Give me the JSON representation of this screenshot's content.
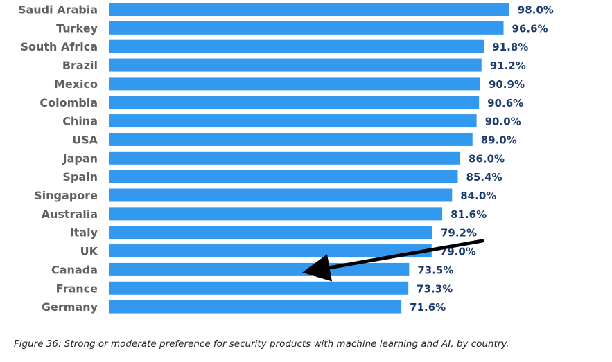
{
  "chart_data": {
    "type": "bar",
    "orientation": "horizontal",
    "categories": [
      "Saudi Arabia",
      "Turkey",
      "South Africa",
      "Brazil",
      "Mexico",
      "Colombia",
      "China",
      "USA",
      "Japan",
      "Spain",
      "Singapore",
      "Australia",
      "Italy",
      "UK",
      "Canada",
      "France",
      "Germany"
    ],
    "values": [
      98.0,
      96.6,
      91.8,
      91.2,
      90.9,
      90.6,
      90.0,
      89.0,
      86.0,
      85.4,
      84.0,
      81.6,
      79.2,
      79.0,
      73.5,
      73.3,
      71.6
    ],
    "value_labels": [
      "98.0%",
      "96.6%",
      "91.8%",
      "91.2%",
      "90.9%",
      "90.6%",
      "90.0%",
      "89.0%",
      "86.0%",
      "85.4%",
      "84.0%",
      "81.6%",
      "79.2%",
      "79.0%",
      "73.5%",
      "73.3%",
      "71.6%"
    ],
    "title": "",
    "xlabel": "",
    "ylabel": "",
    "bar_color": "#3399ee",
    "value_label_color": "#1b3c6b",
    "category_label_color": "#5f6063",
    "grid": false,
    "legend": "none",
    "annotations": [
      {
        "type": "arrow",
        "target_category": "Canada",
        "color": "#000000"
      }
    ]
  },
  "caption": "Figure 36: Strong or moderate preference for security products with machine learning and AI, by country."
}
